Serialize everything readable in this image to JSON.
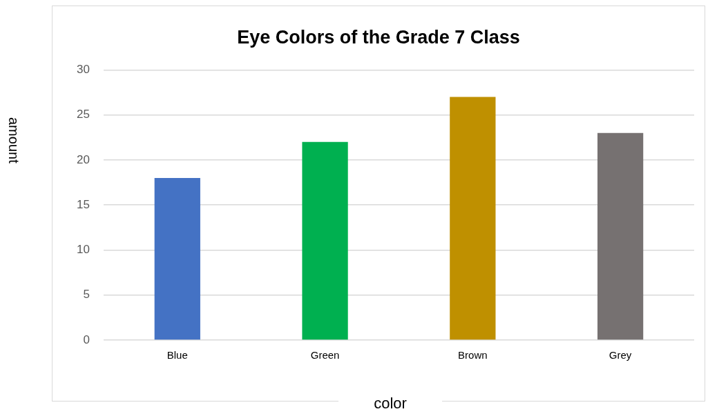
{
  "chart_data": {
    "type": "bar",
    "title": "Eye Colors of the Grade 7 Class",
    "xlabel": "color",
    "ylabel": "amount",
    "categories": [
      "Blue",
      "Green",
      "Brown",
      "Grey"
    ],
    "values": [
      18,
      22,
      27,
      23
    ],
    "colors": [
      "#4472c4",
      "#00b050",
      "#bf9000",
      "#767171"
    ],
    "ylim": [
      0,
      30
    ],
    "yticks": [
      0,
      5,
      10,
      15,
      20,
      25,
      30
    ],
    "grid": "y",
    "legend": false
  }
}
